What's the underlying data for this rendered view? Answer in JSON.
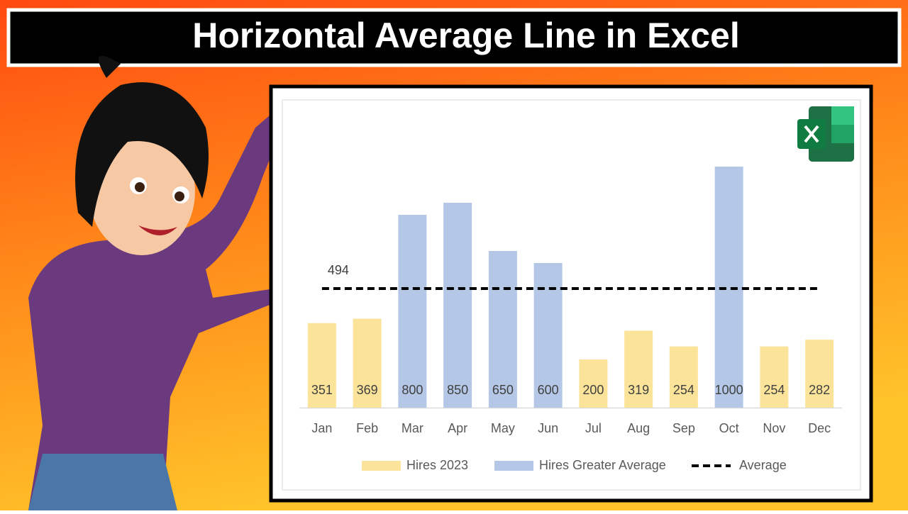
{
  "chart_data": {
    "type": "bar",
    "title": "Horizontal Average Line in Excel",
    "categories": [
      "Jan",
      "Feb",
      "Mar",
      "Apr",
      "May",
      "Jun",
      "Jul",
      "Aug",
      "Sep",
      "Oct",
      "Nov",
      "Dec"
    ],
    "series": [
      {
        "name": "Hires 2023",
        "color": "#fbe49a",
        "values": [
          351,
          369,
          null,
          null,
          null,
          null,
          200,
          319,
          254,
          null,
          254,
          282
        ]
      },
      {
        "name": "Hires Greater Average",
        "color": "#b4c7e7",
        "values": [
          null,
          null,
          800,
          850,
          650,
          600,
          null,
          null,
          null,
          1000,
          null,
          null
        ]
      },
      {
        "name": "Average",
        "type": "line",
        "color": "#000000",
        "values": [
          494,
          494,
          494,
          494,
          494,
          494,
          494,
          494,
          494,
          494,
          494,
          494
        ]
      }
    ],
    "ylim": [
      0,
      1250
    ],
    "legend": "bottom",
    "data_labels": true
  }
}
